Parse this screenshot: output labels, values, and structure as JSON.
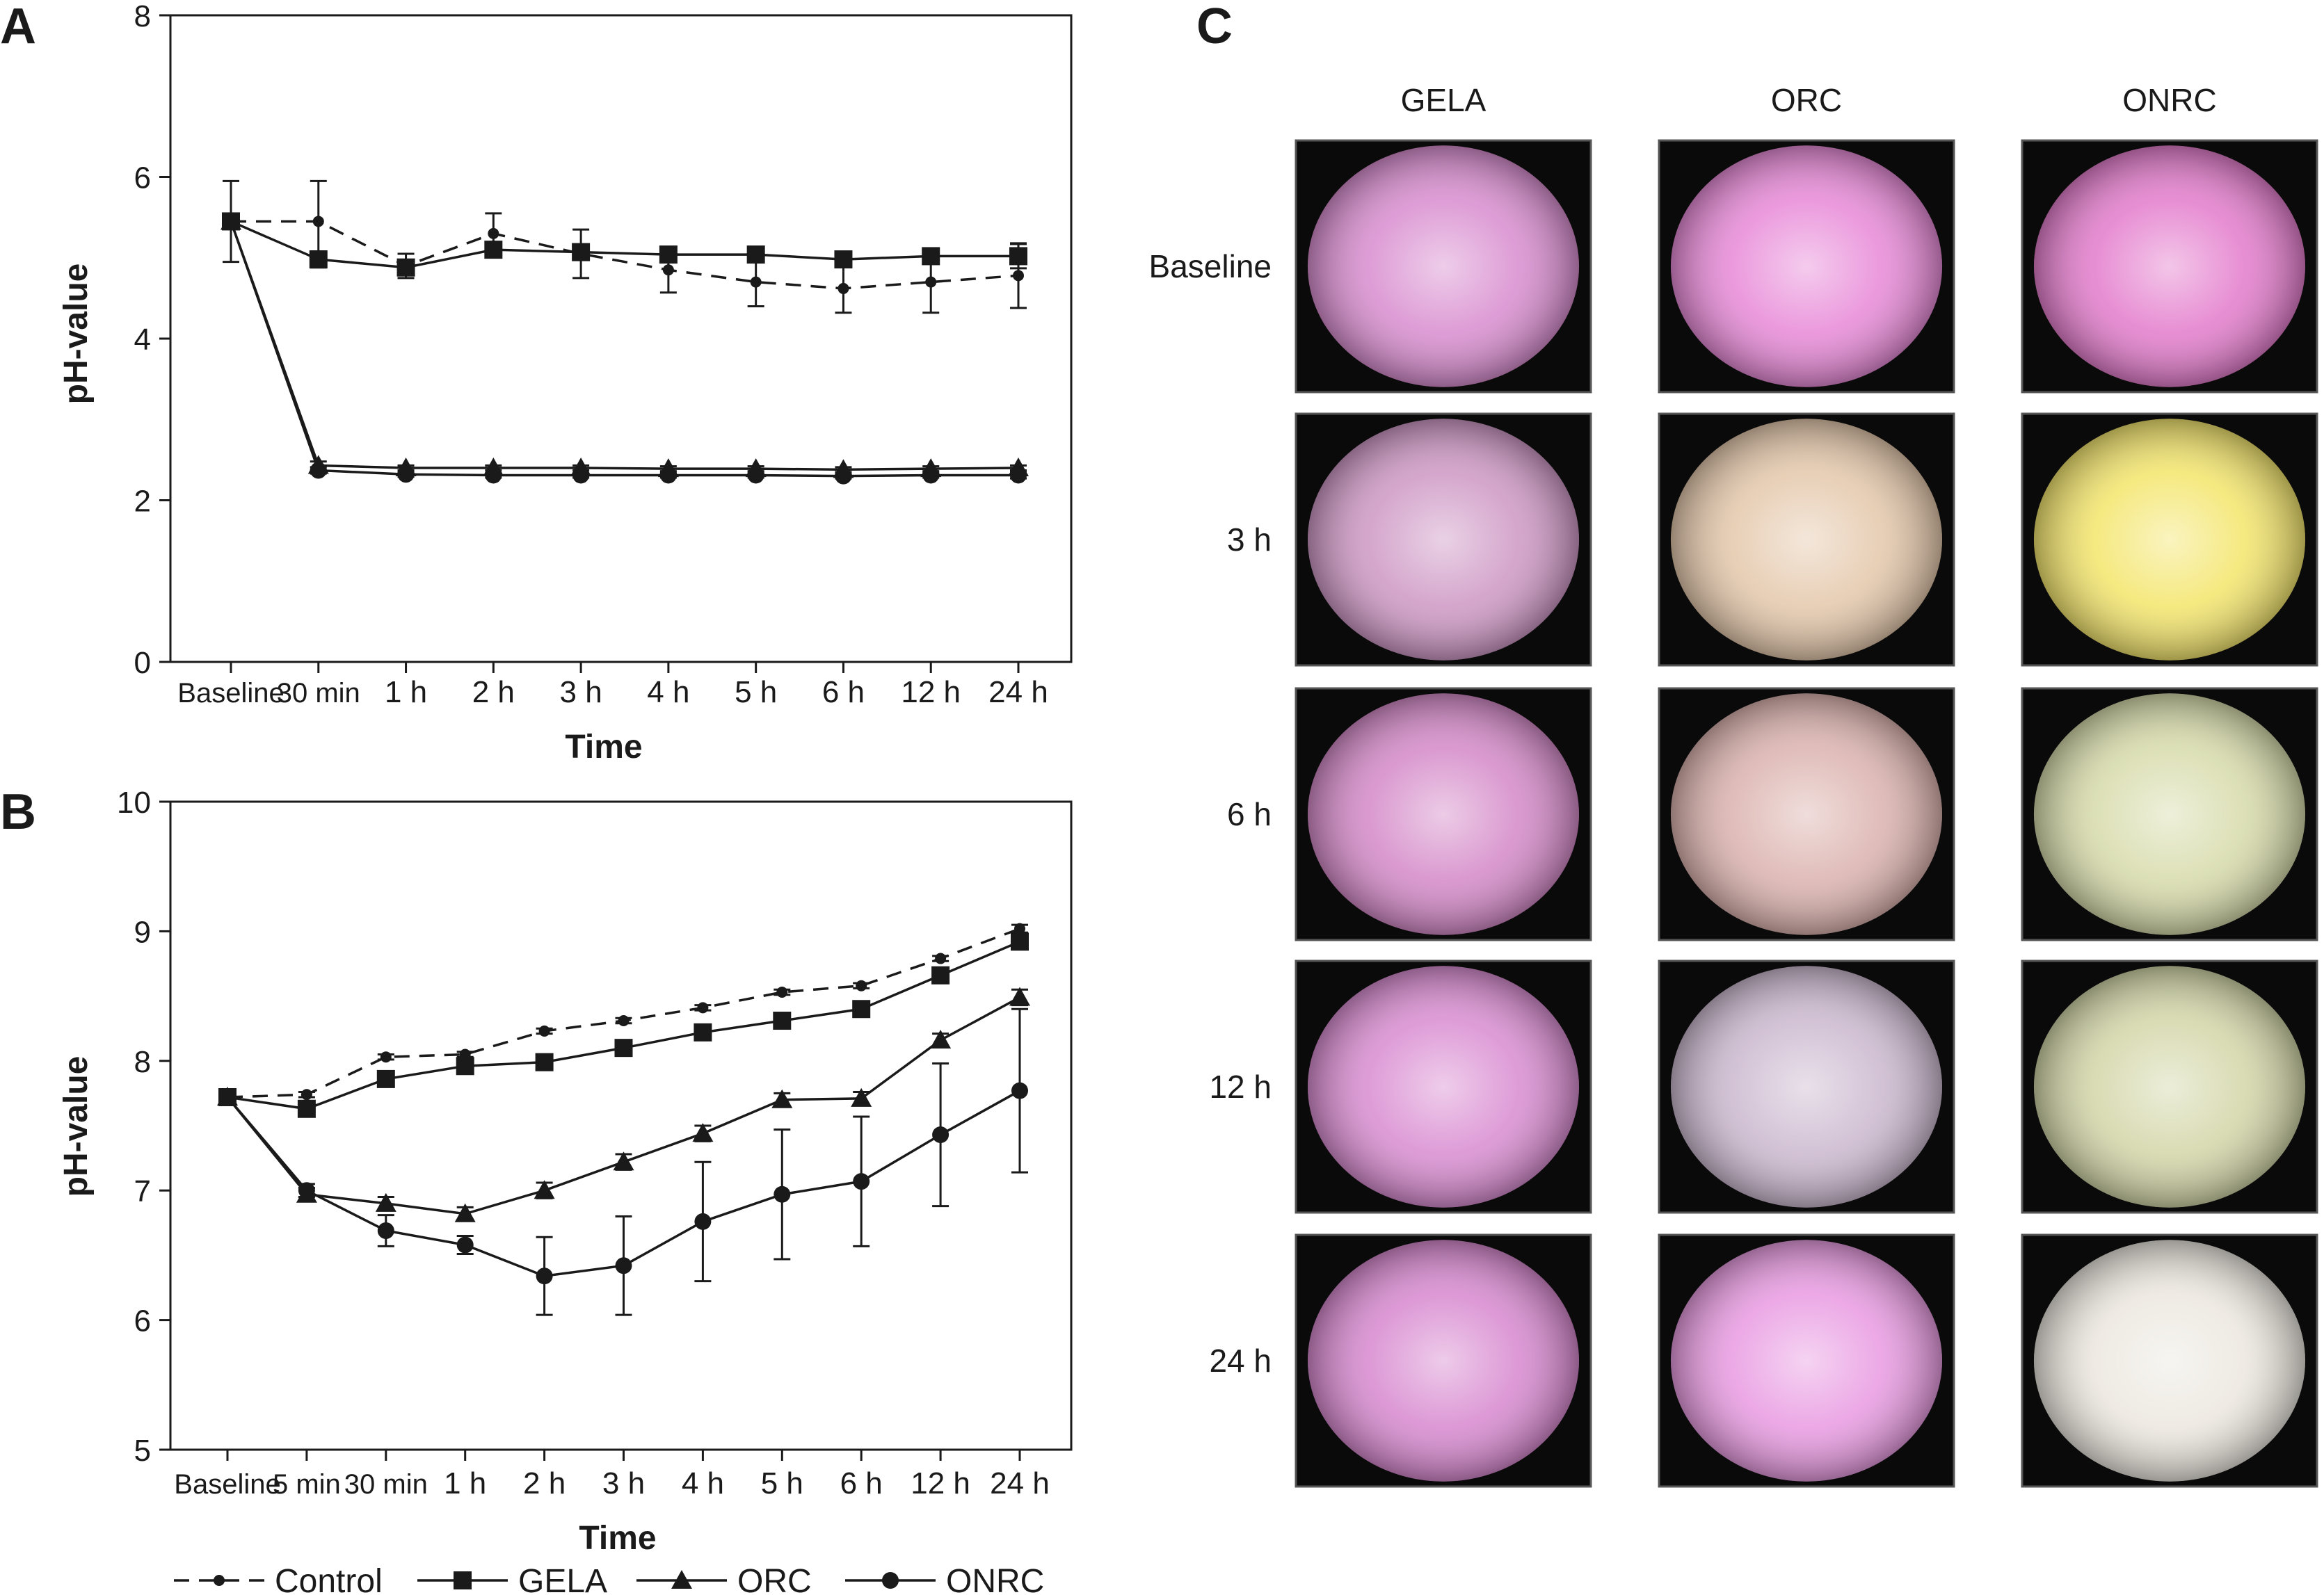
{
  "panels": {
    "a": "A",
    "b": "B",
    "c": "C"
  },
  "chart_data": [
    {
      "id": "A",
      "type": "line",
      "categories": [
        "Baseline",
        "30 min",
        "1 h",
        "2 h",
        "3 h",
        "4 h",
        "5 h",
        "6 h",
        "12 h",
        "24 h"
      ],
      "xlabel": "Time",
      "ylabel": "pH-value",
      "ylim": [
        0,
        8
      ],
      "yticks": [
        0,
        2,
        4,
        6,
        8
      ],
      "grid": false,
      "series": [
        {
          "name": "Control",
          "marker": "dot",
          "dashed": true,
          "values": [
            5.45,
            5.45,
            4.9,
            5.3,
            5.05,
            4.85,
            4.7,
            4.62,
            4.7,
            4.78
          ],
          "errors": [
            0.5,
            0.5,
            0.15,
            0.25,
            0.3,
            0.28,
            0.3,
            0.3,
            0.38,
            0.4
          ]
        },
        {
          "name": "GELA",
          "marker": "square",
          "dashed": false,
          "values": [
            5.45,
            4.98,
            4.88,
            5.1,
            5.07,
            5.04,
            5.04,
            4.98,
            5.02,
            5.02
          ],
          "errors": [
            0,
            0.1,
            0.08,
            0.07,
            0.05,
            0.05,
            0.05,
            0.05,
            0.05,
            0.15
          ]
        },
        {
          "name": "ORC",
          "marker": "triangle",
          "dashed": false,
          "values": [
            5.45,
            2.43,
            2.4,
            2.4,
            2.4,
            2.39,
            2.39,
            2.38,
            2.39,
            2.4
          ],
          "errors": [
            0,
            0.05,
            0.03,
            0.03,
            0.03,
            0.03,
            0.03,
            0.03,
            0.03,
            0.03
          ]
        },
        {
          "name": "ONRC",
          "marker": "circle",
          "dashed": false,
          "values": [
            5.45,
            2.37,
            2.32,
            2.31,
            2.31,
            2.31,
            2.31,
            2.3,
            2.31,
            2.31
          ],
          "errors": [
            0,
            0.04,
            0.03,
            0.03,
            0.03,
            0.03,
            0.03,
            0.03,
            0.03,
            0.04
          ]
        }
      ]
    },
    {
      "id": "B",
      "type": "line",
      "categories": [
        "Baseline",
        "5 min",
        "30 min",
        "1 h",
        "2 h",
        "3 h",
        "4 h",
        "5 h",
        "6 h",
        "12 h",
        "24 h"
      ],
      "xlabel": "Time",
      "ylabel": "pH-value",
      "ylim": [
        5,
        10
      ],
      "yticks": [
        5,
        6,
        7,
        8,
        9,
        10
      ],
      "grid": false,
      "series": [
        {
          "name": "Control",
          "marker": "dot",
          "dashed": true,
          "values": [
            7.72,
            7.74,
            8.03,
            8.05,
            8.23,
            8.31,
            8.41,
            8.53,
            8.58,
            8.79,
            9.02
          ],
          "errors": [
            0,
            0.02,
            0.02,
            0.02,
            0.02,
            0.02,
            0.02,
            0.02,
            0.02,
            0.02,
            0.03
          ]
        },
        {
          "name": "GELA",
          "marker": "square",
          "dashed": false,
          "values": [
            7.72,
            7.63,
            7.86,
            7.96,
            7.99,
            8.1,
            8.22,
            8.31,
            8.4,
            8.66,
            8.92
          ],
          "errors": [
            0,
            0.05,
            0.05,
            0.05,
            0.04,
            0.04,
            0.05,
            0.04,
            0.04,
            0.05,
            0.05
          ]
        },
        {
          "name": "ORC",
          "marker": "triangle",
          "dashed": false,
          "values": [
            7.72,
            6.97,
            6.9,
            6.82,
            7.0,
            7.22,
            7.44,
            7.7,
            7.71,
            8.16,
            8.49
          ],
          "errors": [
            0,
            0.05,
            0.05,
            0.05,
            0.06,
            0.06,
            0.06,
            0.05,
            0.05,
            0.05,
            0.06
          ]
        },
        {
          "name": "ONRC",
          "marker": "circle",
          "dashed": false,
          "values": [
            7.72,
            7.0,
            6.69,
            6.58,
            6.34,
            6.42,
            6.76,
            6.97,
            7.07,
            7.43,
            7.77
          ],
          "errors": [
            0,
            0.05,
            0.12,
            0.07,
            0.3,
            0.38,
            0.46,
            0.5,
            0.5,
            0.55,
            0.63
          ]
        }
      ]
    }
  ],
  "legend": [
    {
      "label": "Control",
      "marker": "dot",
      "dashed": true
    },
    {
      "label": "GELA",
      "marker": "square",
      "dashed": false
    },
    {
      "label": "ORC",
      "marker": "triangle",
      "dashed": false
    },
    {
      "label": "ONRC",
      "marker": "circle",
      "dashed": false
    }
  ],
  "micrographs": {
    "columns": [
      "GELA",
      "ORC",
      "ONRC"
    ],
    "rows": [
      "Baseline",
      "3 h",
      "6 h",
      "12 h",
      "24 h"
    ],
    "colors": [
      [
        "#d98fd0",
        "#e88cd8",
        "#e47fcd"
      ],
      [
        "#cf9ac6",
        "#e5c9ad",
        "#f4e670"
      ],
      [
        "#d58cc9",
        "#dcb4b0",
        "#d8dcac"
      ],
      [
        "#da8fd2",
        "#cdbad0",
        "#d4d7aa"
      ],
      [
        "#d88bd0",
        "#e99de2",
        "#ece8e0"
      ]
    ]
  }
}
